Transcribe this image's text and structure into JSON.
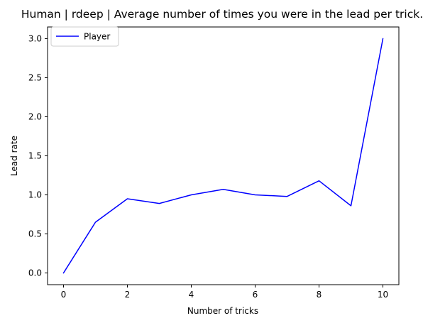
{
  "chart_data": {
    "type": "line",
    "title": "Human | rdeep | Average number of times you were in the lead per trick.",
    "xlabel": "Number of tricks",
    "ylabel": "Lead rate",
    "xlim": [
      -0.5,
      10.5
    ],
    "ylim": [
      -0.15,
      3.15
    ],
    "xticks": [
      0,
      2,
      4,
      6,
      8,
      10
    ],
    "xtick_labels": [
      "0",
      "2",
      "4",
      "6",
      "8",
      "10"
    ],
    "yticks": [
      0.0,
      0.5,
      1.0,
      1.5,
      2.0,
      2.5,
      3.0
    ],
    "ytick_labels": [
      "0.0",
      "0.5",
      "1.0",
      "1.5",
      "2.0",
      "2.5",
      "3.0"
    ],
    "grid": false,
    "legend_position": "upper-left",
    "series": [
      {
        "name": "Player",
        "color": "#0000ff",
        "x": [
          0,
          1,
          2,
          3,
          4,
          5,
          6,
          7,
          8,
          9,
          10
        ],
        "y": [
          0.0,
          0.65,
          0.95,
          0.89,
          1.0,
          1.07,
          1.0,
          0.98,
          1.18,
          0.86,
          3.0
        ]
      }
    ]
  }
}
